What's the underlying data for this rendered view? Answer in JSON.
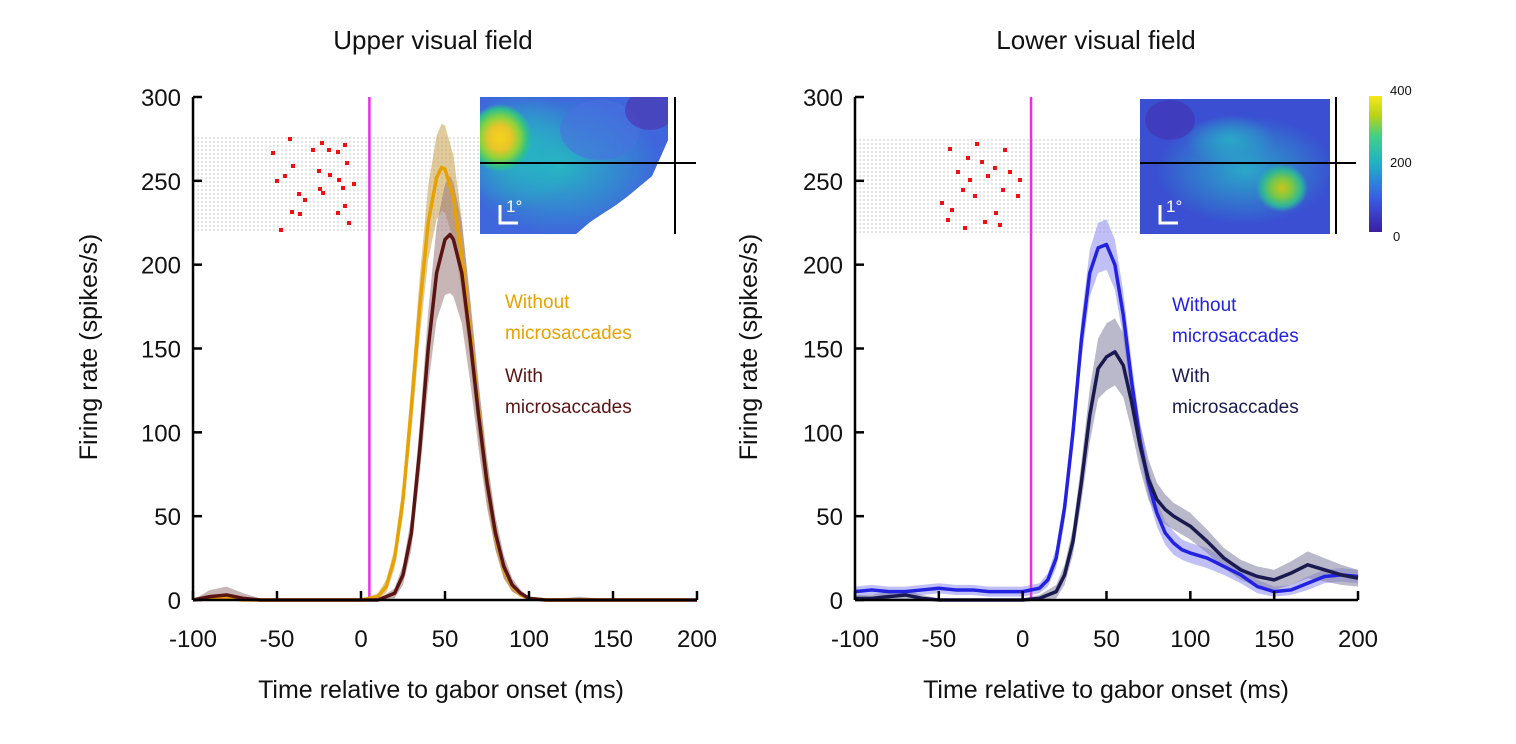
{
  "chart_data": [
    {
      "type": "line",
      "title": "Upper visual field",
      "xlabel": "Time relative to gabor onset (ms)",
      "ylabel": "Firing rate (spikes/s)",
      "xlim": [
        -100,
        200
      ],
      "ylim": [
        0,
        300
      ],
      "xticks": [
        "-100",
        "-50",
        "0",
        "50",
        "100",
        "150",
        "200"
      ],
      "yticks": [
        "0",
        "50",
        "100",
        "150",
        "200",
        "250",
        "300"
      ],
      "stimulus_onset_ms": 5,
      "stimulus_onset_color": "#e82ee8",
      "inset_scale_label": "1°",
      "legend": [
        {
          "label_line1": "Without",
          "label_line2": "microsaccades",
          "color": "#e8a200"
        },
        {
          "label_line1": "With",
          "label_line2": "microsaccades",
          "color": "#5a1414"
        }
      ],
      "series": [
        {
          "name": "Without microsaccades",
          "color": "#e8a200",
          "band_color": "#c9a04a",
          "x": [
            -100,
            -90,
            -80,
            -70,
            -60,
            -50,
            -40,
            -30,
            -20,
            -10,
            0,
            10,
            15,
            20,
            25,
            30,
            35,
            40,
            45,
            48,
            50,
            55,
            60,
            65,
            70,
            75,
            80,
            85,
            90,
            95,
            100,
            110,
            120,
            130,
            140,
            150,
            160,
            170,
            180,
            190,
            200
          ],
          "y": [
            0,
            1,
            1,
            0,
            0,
            0,
            0,
            0,
            0,
            0,
            0,
            2,
            8,
            25,
            60,
            115,
            175,
            225,
            252,
            258,
            257,
            240,
            205,
            160,
            112,
            70,
            38,
            18,
            8,
            3,
            1,
            0,
            0,
            0,
            0,
            0,
            0,
            0,
            0,
            0,
            0
          ],
          "err": [
            0,
            2,
            2,
            1,
            0,
            0,
            0,
            0,
            0,
            0,
            0,
            2,
            4,
            6,
            10,
            14,
            18,
            22,
            25,
            26,
            26,
            25,
            22,
            18,
            15,
            12,
            8,
            5,
            3,
            1,
            1,
            1,
            1,
            1,
            1,
            0,
            0,
            0,
            0,
            0,
            0
          ]
        },
        {
          "name": "With microsaccades",
          "color": "#5a1414",
          "band_color": "#9a7a7a",
          "x": [
            -100,
            -90,
            -80,
            -70,
            -60,
            -50,
            -40,
            -30,
            -20,
            -10,
            0,
            10,
            20,
            25,
            30,
            35,
            40,
            45,
            50,
            53,
            55,
            60,
            65,
            70,
            75,
            80,
            85,
            90,
            95,
            100,
            110,
            120,
            130,
            140,
            150,
            160,
            170,
            180,
            190,
            200
          ],
          "y": [
            0,
            2,
            3,
            1,
            0,
            0,
            0,
            0,
            0,
            0,
            0,
            0,
            4,
            15,
            40,
            90,
            150,
            195,
            215,
            218,
            215,
            195,
            155,
            110,
            70,
            40,
            20,
            9,
            4,
            1,
            0,
            0,
            0,
            0,
            0,
            0,
            0,
            0,
            0,
            0
          ],
          "err": [
            0,
            4,
            5,
            3,
            1,
            0,
            0,
            0,
            0,
            0,
            0,
            0,
            3,
            6,
            10,
            15,
            22,
            28,
            33,
            35,
            34,
            30,
            25,
            20,
            15,
            10,
            7,
            4,
            2,
            1,
            1,
            1,
            2,
            1,
            0,
            0,
            0,
            0,
            0,
            0
          ]
        }
      ]
    },
    {
      "type": "line",
      "title": "Lower visual field",
      "xlabel": "Time relative to gabor onset (ms)",
      "ylabel": "Firing rate (spikes/s)",
      "xlim": [
        -100,
        200
      ],
      "ylim": [
        0,
        300
      ],
      "xticks": [
        "-100",
        "-50",
        "0",
        "50",
        "100",
        "150",
        "200"
      ],
      "yticks": [
        "0",
        "50",
        "100",
        "150",
        "200",
        "250",
        "300"
      ],
      "stimulus_onset_ms": 5,
      "stimulus_onset_color": "#e82ee8",
      "inset_scale_label": "1°",
      "colorbar": {
        "min": 0,
        "max": 400,
        "ticks": [
          "400",
          "200",
          "0"
        ]
      },
      "legend": [
        {
          "label_line1": "Without",
          "label_line2": "microsaccades",
          "color": "#2222e0"
        },
        {
          "label_line1": "With",
          "label_line2": "microsaccades",
          "color": "#1a1a50"
        }
      ],
      "series": [
        {
          "name": "Without microsaccades",
          "color": "#2222e0",
          "band_color": "#8c8cf0",
          "x": [
            -100,
            -90,
            -80,
            -70,
            -60,
            -50,
            -40,
            -30,
            -20,
            -10,
            0,
            10,
            15,
            20,
            25,
            30,
            35,
            40,
            45,
            50,
            55,
            60,
            65,
            70,
            75,
            80,
            85,
            90,
            95,
            100,
            110,
            120,
            130,
            140,
            150,
            160,
            170,
            180,
            190,
            200
          ],
          "y": [
            5,
            6,
            5,
            5,
            6,
            7,
            6,
            6,
            5,
            5,
            5,
            7,
            12,
            25,
            55,
            100,
            155,
            195,
            210,
            212,
            200,
            170,
            130,
            95,
            70,
            52,
            40,
            34,
            30,
            28,
            25,
            20,
            15,
            8,
            5,
            6,
            10,
            14,
            15,
            14
          ],
          "err": [
            3,
            3,
            3,
            3,
            3,
            3,
            3,
            3,
            3,
            3,
            3,
            3,
            4,
            6,
            8,
            10,
            12,
            14,
            15,
            15,
            15,
            14,
            12,
            10,
            9,
            8,
            7,
            7,
            6,
            6,
            6,
            5,
            5,
            4,
            3,
            3,
            4,
            4,
            4,
            4
          ]
        },
        {
          "name": "With microsaccades",
          "color": "#1a1a50",
          "band_color": "#8080a0",
          "x": [
            -100,
            -90,
            -80,
            -70,
            -60,
            -50,
            -40,
            -30,
            -20,
            -10,
            0,
            10,
            20,
            25,
            30,
            35,
            40,
            45,
            50,
            55,
            60,
            65,
            70,
            75,
            80,
            85,
            90,
            95,
            100,
            110,
            120,
            130,
            140,
            150,
            160,
            170,
            180,
            190,
            200
          ],
          "y": [
            1,
            1,
            2,
            3,
            1,
            0,
            0,
            0,
            0,
            0,
            0,
            1,
            5,
            15,
            35,
            70,
            110,
            138,
            145,
            148,
            140,
            118,
            92,
            72,
            60,
            54,
            50,
            47,
            44,
            35,
            25,
            18,
            14,
            12,
            16,
            21,
            18,
            15,
            13
          ],
          "err": [
            2,
            2,
            3,
            3,
            2,
            1,
            1,
            1,
            1,
            1,
            1,
            2,
            4,
            6,
            8,
            12,
            16,
            18,
            20,
            20,
            19,
            17,
            14,
            12,
            10,
            9,
            8,
            8,
            8,
            7,
            6,
            6,
            6,
            6,
            7,
            8,
            7,
            6,
            5
          ]
        }
      ]
    }
  ]
}
